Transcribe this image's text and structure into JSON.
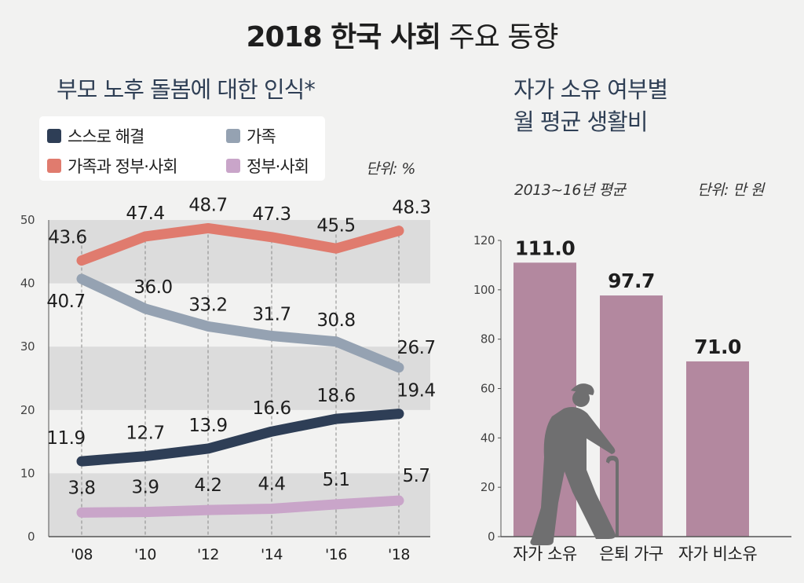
{
  "title": {
    "prefix": "2018 한국 사회",
    "suffix": " 주요 동향"
  },
  "left_chart": {
    "subtitle": "부모 노후 돌봄에 대한 인식*",
    "unit": "단위: %",
    "legend": [
      {
        "label": "스스로 해결",
        "color": "#2e3e56"
      },
      {
        "label": "가족",
        "color": "#95a2b2"
      },
      {
        "label": "가족과 정부·사회",
        "color": "#e07b6e"
      },
      {
        "label": "정부·사회",
        "color": "#c9a5c9"
      }
    ]
  },
  "right_chart": {
    "subtitle_line1": "자가 소유 여부별",
    "subtitle_line2": "월 평균 생활비",
    "period": "2013~16년 평균",
    "unit": "단위: 만 원",
    "icon": "elderly-person-with-cane-icon"
  },
  "chart_data": [
    {
      "type": "line",
      "x": [
        "'08",
        "'10",
        "'12",
        "'14",
        "'16",
        "'18"
      ],
      "ylim": [
        0,
        50
      ],
      "yticks": [
        "0",
        "10",
        "20",
        "30",
        "40",
        "50"
      ],
      "series": [
        {
          "name": "가족과 정부·사회",
          "color": "#e07b6e",
          "values": [
            43.6,
            47.4,
            48.7,
            47.3,
            45.5,
            48.3
          ],
          "labels": [
            "43.6",
            "47.4",
            "48.7",
            "47.3",
            "45.5",
            "48.3"
          ]
        },
        {
          "name": "가족",
          "color": "#95a2b2",
          "values": [
            40.7,
            36.0,
            33.2,
            31.7,
            30.8,
            26.7
          ],
          "labels": [
            "40.7",
            "36.0",
            "33.2",
            "31.7",
            "30.8",
            "26.7"
          ]
        },
        {
          "name": "스스로 해결",
          "color": "#2e3e56",
          "values": [
            11.9,
            12.7,
            13.9,
            16.6,
            18.6,
            19.4
          ],
          "labels": [
            "11.9",
            "12.7",
            "13.9",
            "16.6",
            "18.6",
            "19.4"
          ]
        },
        {
          "name": "정부·사회",
          "color": "#c9a5c9",
          "values": [
            3.8,
            3.9,
            4.2,
            4.4,
            5.1,
            5.7
          ],
          "labels": [
            "3.8",
            "3.9",
            "4.2",
            "4.4",
            "5.1",
            "5.7"
          ]
        }
      ],
      "grid_bands": "alternating gray bands"
    },
    {
      "type": "bar",
      "categories": [
        "자가 소유",
        "은퇴 가구",
        "자가 비소유"
      ],
      "values": [
        111.0,
        97.7,
        71.0
      ],
      "labels": [
        "111.0",
        "97.7",
        "71.0"
      ],
      "ylim": [
        0,
        120
      ],
      "yticks": [
        "0",
        "20",
        "40",
        "60",
        "80",
        "100",
        "120"
      ],
      "color": "#b3889f"
    }
  ]
}
